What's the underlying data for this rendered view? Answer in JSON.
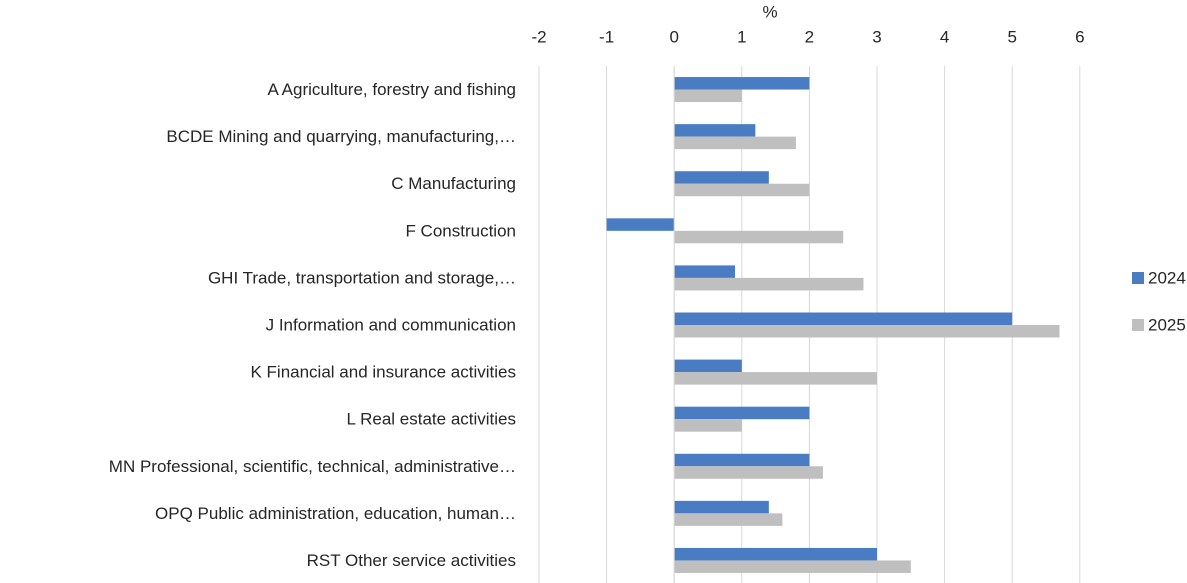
{
  "chart_data": {
    "type": "barh",
    "xlabel": "%",
    "categories": [
      "A Agriculture, forestry and fishing",
      "BCDE Mining and quarrying, manufacturing,…",
      "C Manufacturing",
      "F Construction",
      "GHI Trade, transportation and storage,…",
      "J Information and communication",
      "K Financial and insurance activities",
      "L Real estate activities",
      "MN Professional, scientific, technical, administrative…",
      "OPQ Public administration, education, human…",
      "RST Other service activities"
    ],
    "series": [
      {
        "name": "2024",
        "color": "#4a7cc4",
        "values": [
          2,
          1.2,
          1.4,
          -1,
          0.9,
          5,
          1,
          2,
          2,
          1.4,
          3
        ]
      },
      {
        "name": "2025",
        "color": "#bfbfbf",
        "values": [
          1,
          1.8,
          2,
          2.5,
          2.8,
          5.7,
          3,
          1,
          2.2,
          1.6,
          3.5
        ]
      }
    ],
    "xlim": [
      -2,
      6.2
    ],
    "xticks": [
      -2,
      -1,
      0,
      1,
      2,
      3,
      4,
      5,
      6
    ],
    "grid": true,
    "legend": "right"
  }
}
